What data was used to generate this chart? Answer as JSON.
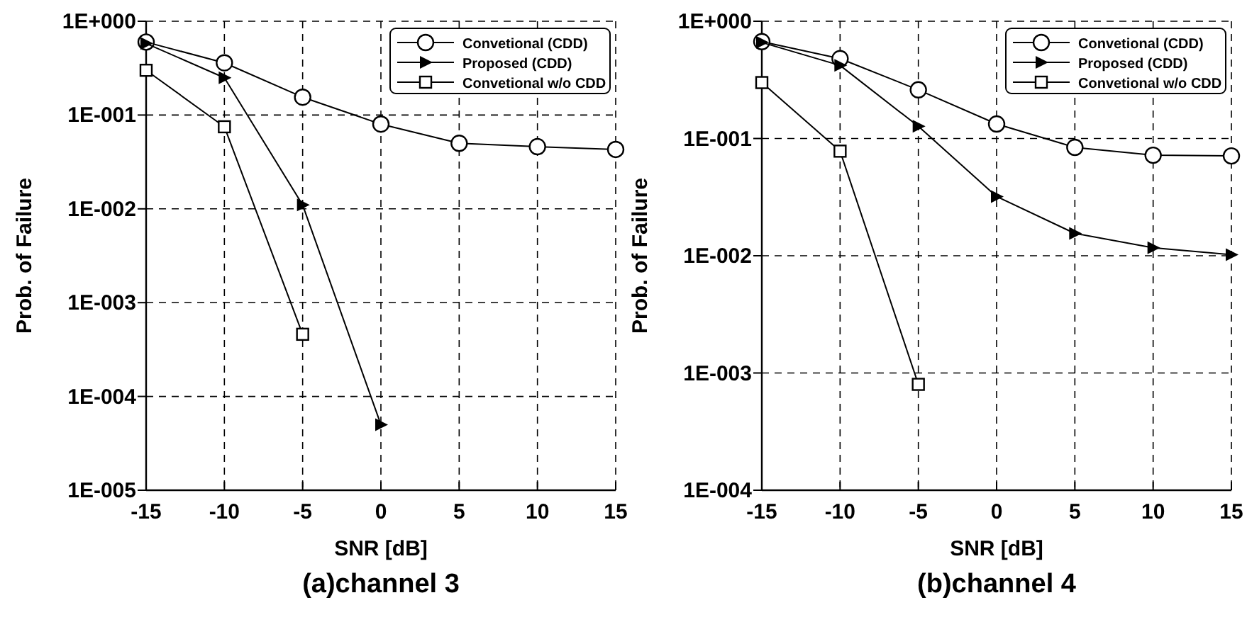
{
  "chart_data": [
    {
      "type": "line",
      "title": "(a)channel 3",
      "xlabel": "SNR [dB]",
      "ylabel": "Prob. of Failure",
      "x": [
        -15,
        -10,
        -5,
        0,
        5,
        10,
        15
      ],
      "xlim": [
        -15,
        15
      ],
      "xticks": [
        -15,
        -10,
        -5,
        0,
        5,
        10,
        15
      ],
      "ylim": [
        1e-05,
        1
      ],
      "yticks": [
        {
          "value": 1e-05,
          "label": "1E-005"
        },
        {
          "value": 0.0001,
          "label": "1E-004"
        },
        {
          "value": 0.001,
          "label": "1E-003"
        },
        {
          "value": 0.01,
          "label": "1E-002"
        },
        {
          "value": 0.1,
          "label": "1E-001"
        },
        {
          "value": 1,
          "label": "1E+000"
        }
      ],
      "log": "y",
      "grid": true,
      "legend": "top right",
      "series": [
        {
          "name": "Convetional (CDD)",
          "color": "#000000",
          "marker": "circle",
          "values": [
            0.6,
            0.36,
            0.155,
            0.08,
            0.05,
            0.046,
            0.043
          ]
        },
        {
          "name": "Proposed (CDD)",
          "color": "#000000",
          "marker": "triangle",
          "values": [
            0.58,
            0.25,
            0.011,
            5e-05,
            null,
            null,
            null
          ]
        },
        {
          "name": "Convetional w/o CDD",
          "color": "#000000",
          "marker": "square",
          "values": [
            0.3,
            0.075,
            0.00046,
            null,
            null,
            null,
            null
          ]
        }
      ]
    },
    {
      "type": "line",
      "title": "(b)channel 4",
      "xlabel": "SNR [dB]",
      "ylabel": "Prob. of Failure",
      "x": [
        -15,
        -10,
        -5,
        0,
        5,
        10,
        15
      ],
      "xlim": [
        -15,
        15
      ],
      "xticks": [
        -15,
        -10,
        -5,
        0,
        5,
        10,
        15
      ],
      "ylim": [
        0.0001,
        1
      ],
      "yticks": [
        {
          "value": 0.0001,
          "label": "1E-004"
        },
        {
          "value": 0.001,
          "label": "1E-003"
        },
        {
          "value": 0.01,
          "label": "1E-002"
        },
        {
          "value": 0.1,
          "label": "1E-001"
        },
        {
          "value": 1,
          "label": "1E+000"
        }
      ],
      "log": "y",
      "grid": true,
      "legend": "top right",
      "series": [
        {
          "name": "Convetional (CDD)",
          "color": "#000000",
          "marker": "circle",
          "values": [
            0.67,
            0.48,
            0.26,
            0.133,
            0.084,
            0.072,
            0.071
          ]
        },
        {
          "name": "Proposed (CDD)",
          "color": "#000000",
          "marker": "triangle",
          "values": [
            0.66,
            0.42,
            0.127,
            0.032,
            0.0155,
            0.0117,
            0.0102
          ]
        },
        {
          "name": "Convetional w/o CDD",
          "color": "#000000",
          "marker": "square",
          "values": [
            0.3,
            0.078,
            0.0008,
            null,
            null,
            null,
            null
          ]
        }
      ]
    }
  ]
}
